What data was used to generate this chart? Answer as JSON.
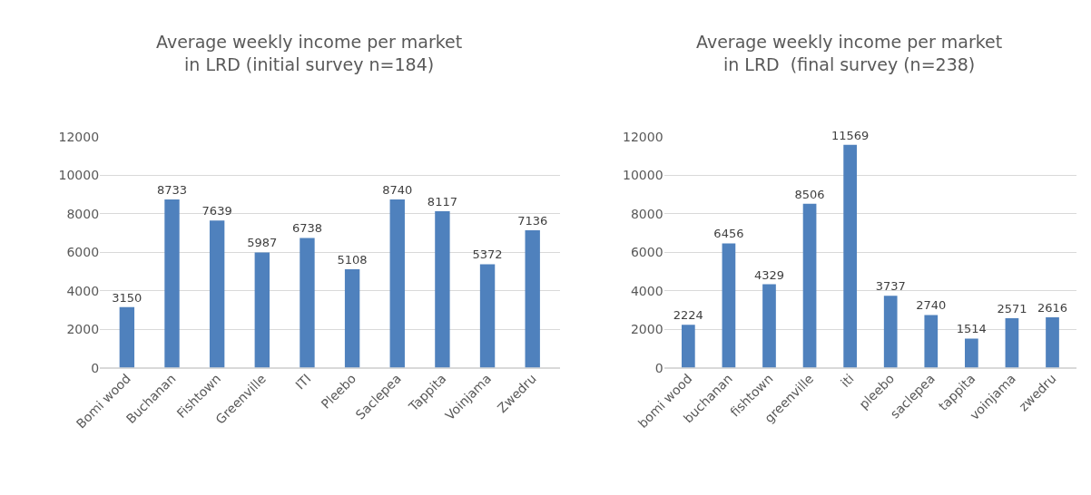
{
  "chart_data": [
    {
      "type": "bar",
      "title": "Average weekly income per market in LRD (initial survey n=184)",
      "categories": [
        "Bomi wood",
        "Buchanan",
        "Fishtown",
        "Greenville",
        "ITI",
        "Pleebo",
        "Saclepea",
        "Tappita",
        "Voinjama",
        "Zwedru"
      ],
      "values": [
        3150,
        8733,
        7639,
        5987,
        6738,
        5108,
        8740,
        8117,
        5372,
        7136
      ],
      "color": "#4f81bd",
      "ylim": [
        0,
        12000
      ],
      "yticks": [
        0,
        2000,
        4000,
        6000,
        8000,
        10000,
        12000
      ],
      "grid": "y",
      "data_labels": true
    },
    {
      "type": "bar",
      "title": "Average weekly income per market in LRD  (final survey (n=238)",
      "categories": [
        "bomi wood",
        "buchanan",
        "fishtown",
        "greenville",
        "iti",
        "pleebo",
        "saclepea",
        "tappita",
        "voinjama",
        "zwedru"
      ],
      "values": [
        2224,
        6456,
        4329,
        8506,
        11569,
        3737,
        2740,
        1514,
        2571,
        2616
      ],
      "color": "#4f81bd",
      "ylim": [
        0,
        12000
      ],
      "yticks": [
        0,
        2000,
        4000,
        6000,
        8000,
        10000,
        12000
      ],
      "grid": "y",
      "data_labels": true
    }
  ]
}
